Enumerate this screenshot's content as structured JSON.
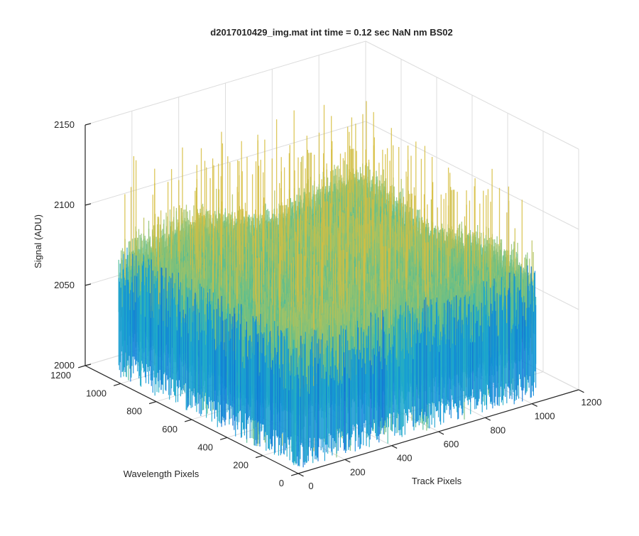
{
  "chart_data": {
    "type": "surface",
    "title": "d2017010429_img.mat int time = 0.12 sec  NaN nm BS02",
    "xlabel": "Track Pixels",
    "ylabel": "Wavelength Pixels",
    "zlabel": "Signal (ADU)",
    "xlim": [
      0,
      1200
    ],
    "ylim": [
      0,
      1200
    ],
    "zlim": [
      2000,
      2150
    ],
    "x_ticks": [
      0,
      200,
      400,
      600,
      800,
      1000,
      1200
    ],
    "x_tick_labels": [
      "0",
      "200",
      "400",
      "600",
      "800",
      "1000",
      "1200"
    ],
    "y_ticks": [
      0,
      200,
      400,
      600,
      800,
      1000,
      1200
    ],
    "y_tick_labels": [
      "0",
      "200",
      "400",
      "600",
      "800",
      "1000",
      "1200"
    ],
    "z_ticks": [
      2000,
      2050,
      2100,
      2150
    ],
    "z_tick_labels": [
      "2000",
      "2050",
      "2100",
      "2150"
    ],
    "data_extent": {
      "x": [
        10,
        1024
      ],
      "y": [
        10,
        1024
      ]
    },
    "signal_typical_range": [
      2030,
      2095
    ],
    "signal_peak_range": [
      2100,
      2140
    ],
    "grid": true,
    "box": "back planes",
    "colormap": "parula",
    "colormap_stops": [
      "#0c63d6",
      "#1196d9",
      "#23b1c4",
      "#56bd93",
      "#9cc36a",
      "#d6bd3f"
    ]
  }
}
